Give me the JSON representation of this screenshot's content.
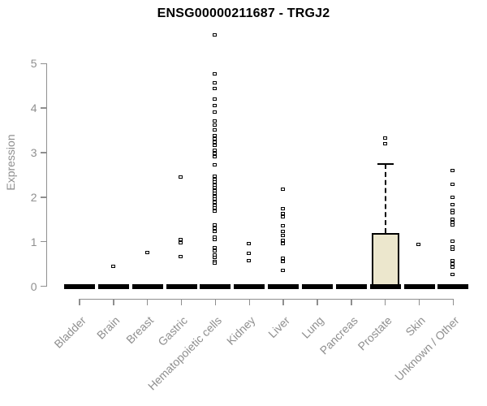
{
  "header": {
    "title": "ENSG00000211687 - TRGJ2"
  },
  "colors": {
    "axis": "#8f8f8f",
    "tick_label": "#8f8f8f",
    "title_text": "#000000",
    "point_stroke": "#000000",
    "point_fill": "#ffffff",
    "box_fill": "#ece7cd",
    "box_border": "#000000",
    "zero_bar": "#000000",
    "background": "#ffffff"
  },
  "chart_data": {
    "type": "box",
    "title": "ENSG00000211687 - TRGJ2",
    "xlabel": "",
    "ylabel": "Expression",
    "ylim": [
      0,
      5.7
    ],
    "y_ticks": [
      0,
      1,
      2,
      3,
      4,
      5
    ],
    "grid": false,
    "legend": "none",
    "point_style": "open-square",
    "categories": [
      "Bladder",
      "Brain",
      "Breast",
      "Gastric",
      "Hematopoietic cells",
      "Kidney",
      "Liver",
      "Lung",
      "Pancreas",
      "Prostate",
      "Skin",
      "Unknown / Other"
    ],
    "series": [
      {
        "name": "Bladder",
        "box": {
          "q1": 0,
          "median": 0,
          "q3": 0,
          "whisker_low": 0,
          "whisker_high": 0
        },
        "outliers": []
      },
      {
        "name": "Brain",
        "box": {
          "q1": 0,
          "median": 0,
          "q3": 0,
          "whisker_low": 0,
          "whisker_high": 0
        },
        "outliers": [
          0.43
        ]
      },
      {
        "name": "Breast",
        "box": {
          "q1": 0,
          "median": 0,
          "q3": 0,
          "whisker_low": 0,
          "whisker_high": 0
        },
        "outliers": [
          0.74
        ]
      },
      {
        "name": "Gastric",
        "box": {
          "q1": 0,
          "median": 0,
          "q3": 0,
          "whisker_low": 0,
          "whisker_high": 0
        },
        "outliers": [
          2.44,
          1.04,
          0.96,
          0.65
        ]
      },
      {
        "name": "Hematopoietic cells",
        "box": {
          "q1": 0,
          "median": 0,
          "q3": 0,
          "whisker_low": 0,
          "whisker_high": 0
        },
        "outliers": [
          5.64,
          4.75,
          4.56,
          4.42,
          4.2,
          4.05,
          3.9,
          3.7,
          3.6,
          3.5,
          3.38,
          3.3,
          3.22,
          3.15,
          3.05,
          2.97,
          2.9,
          2.72,
          2.46,
          2.39,
          2.33,
          2.26,
          2.2,
          2.13,
          2.07,
          2.0,
          1.94,
          1.87,
          1.81,
          1.74,
          1.68,
          1.37,
          1.3,
          1.22,
          1.1,
          1.04,
          0.86,
          0.78,
          0.7,
          0.63,
          0.55,
          0.5
        ]
      },
      {
        "name": "Kidney",
        "box": {
          "q1": 0,
          "median": 0,
          "q3": 0,
          "whisker_low": 0,
          "whisker_high": 0
        },
        "outliers": [
          0.94,
          0.72,
          0.57
        ]
      },
      {
        "name": "Liver",
        "box": {
          "q1": 0,
          "median": 0,
          "q3": 0,
          "whisker_low": 0,
          "whisker_high": 0
        },
        "outliers": [
          2.17,
          1.73,
          1.62,
          1.55,
          1.35,
          1.22,
          1.13,
          1.02,
          0.95,
          0.62,
          0.55,
          0.35
        ]
      },
      {
        "name": "Lung",
        "box": {
          "q1": 0,
          "median": 0,
          "q3": 0,
          "whisker_low": 0,
          "whisker_high": 0
        },
        "outliers": []
      },
      {
        "name": "Pancreas",
        "box": {
          "q1": 0,
          "median": 0,
          "q3": 0,
          "whisker_low": 0,
          "whisker_high": 0
        },
        "outliers": []
      },
      {
        "name": "Prostate",
        "box": {
          "q1": 0,
          "median": 0,
          "q3": 1.2,
          "whisker_low": 0,
          "whisker_high": 2.74
        },
        "outliers": [
          3.32,
          3.18
        ]
      },
      {
        "name": "Skin",
        "box": {
          "q1": 0,
          "median": 0,
          "q3": 0,
          "whisker_low": 0,
          "whisker_high": 0
        },
        "outliers": [
          0.93
        ]
      },
      {
        "name": "Unknown / Other",
        "box": {
          "q1": 0,
          "median": 0,
          "q3": 0,
          "whisker_low": 0,
          "whisker_high": 0
        },
        "outliers": [
          2.59,
          2.28,
          1.99,
          1.82,
          1.7,
          1.64,
          1.5,
          1.42,
          1.37,
          1.01,
          0.88,
          0.81,
          0.56,
          0.49,
          0.42,
          0.26
        ]
      }
    ]
  }
}
